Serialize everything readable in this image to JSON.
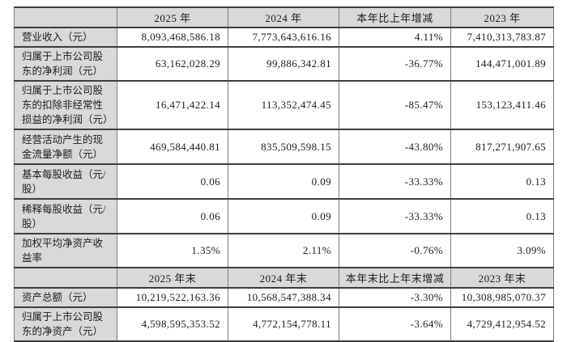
{
  "table": {
    "header1": {
      "label": "",
      "c2025": "2025 年",
      "c2024": "2024 年",
      "change": "本年比上年增减",
      "c2023": "2023 年"
    },
    "rows1": [
      {
        "label": "营业收入（元）",
        "v2025": "8,093,468,586.18",
        "v2024": "7,773,643,616.16",
        "change": "4.11%",
        "v2023": "7,410,313,783.87"
      },
      {
        "label": "归属于上市公司股东的净利润（元）",
        "v2025": "63,162,028.29",
        "v2024": "99,886,342.81",
        "change": "-36.77%",
        "v2023": "144,471,001.89"
      },
      {
        "label": "归属于上市公司股东的扣除非经常性损益的净利润（元）",
        "v2025": "16,471,422.14",
        "v2024": "113,352,474.45",
        "change": "-85.47%",
        "v2023": "153,123,411.46"
      },
      {
        "label": "经营活动产生的现金流量净额（元）",
        "v2025": "469,584,440.81",
        "v2024": "835,509,598.15",
        "change": "-43.80%",
        "v2023": "817,271,907.65"
      },
      {
        "label": "基本每股收益（元/股）",
        "v2025": "0.06",
        "v2024": "0.09",
        "change": "-33.33%",
        "v2023": "0.13"
      },
      {
        "label": "稀释每股收益（元/股）",
        "v2025": "0.06",
        "v2024": "0.09",
        "change": "-33.33%",
        "v2023": "0.13"
      },
      {
        "label": "加权平均净资产收益率",
        "v2025": "1.35%",
        "v2024": "2.11%",
        "change": "-0.76%",
        "v2023": "3.09%"
      }
    ],
    "header2": {
      "label": "",
      "c2025": "2025 年末",
      "c2024": "2024 年末",
      "change": "本年末比上年末增减",
      "c2023": "2023 年末"
    },
    "rows2": [
      {
        "label": "资产总额（元）",
        "v2025": "10,219,522,163.36",
        "v2024": "10,568,547,388.34",
        "change": "-3.30%",
        "v2023": "10,308,985,070.37"
      },
      {
        "label": "归属于上市公司股东的净资产（元）",
        "v2025": "4,598,595,353.52",
        "v2024": "4,772,154,778.11",
        "change": "-3.64%",
        "v2023": "4,729,412,954.52"
      }
    ],
    "colors": {
      "header_bg": "#d9d9d9",
      "label_bg": "#d9d9d9",
      "cell_bg": "#ffffff",
      "border_h": "#3e3e3e",
      "border_v": "#7d7d7d"
    }
  }
}
